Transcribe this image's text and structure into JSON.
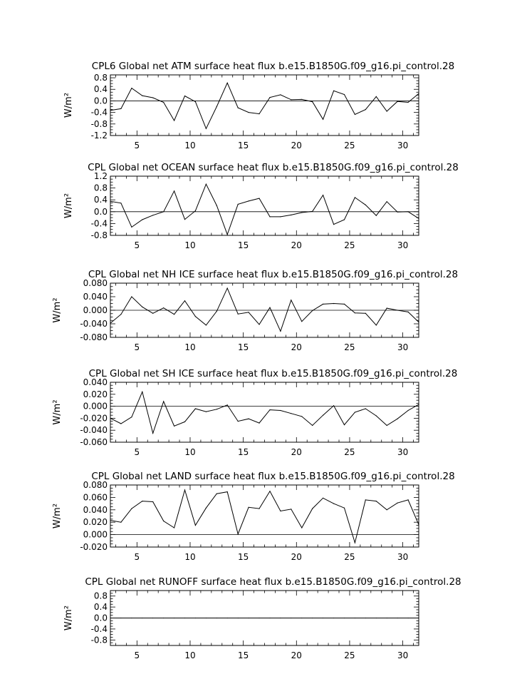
{
  "chart_data": [
    {
      "type": "line",
      "title": "CPL6 Global net ATM surface heat flux b.e15.B1850G.f09_g16.pi_control.28",
      "ylabel": "W/m²",
      "xlim": [
        2.5,
        31.5
      ],
      "ylim": [
        -1.2,
        0.9
      ],
      "x_ticks": [
        "5",
        "10",
        "15",
        "20",
        "25",
        "30"
      ],
      "y_ticks": [
        "0.8",
        "0.4",
        "0.0",
        "-0.4",
        "-0.8",
        "-1.2"
      ],
      "x": [
        2.5,
        3.5,
        4.5,
        5.5,
        6.5,
        7.5,
        8.5,
        9.5,
        10.5,
        11.5,
        12.5,
        13.5,
        14.5,
        15.5,
        16.5,
        17.5,
        18.5,
        19.5,
        20.5,
        21.5,
        22.5,
        23.5,
        24.5,
        25.5,
        26.5,
        27.5,
        28.5,
        29.5,
        30.5,
        31.5
      ],
      "series": [
        {
          "values": [
            -0.33,
            -0.27,
            0.44,
            0.18,
            0.11,
            -0.05,
            -0.68,
            0.17,
            -0.03,
            -0.96,
            -0.2,
            0.62,
            -0.24,
            -0.4,
            -0.45,
            0.12,
            0.21,
            0.04,
            0.05,
            -0.03,
            -0.64,
            0.35,
            0.22,
            -0.47,
            -0.3,
            0.15,
            -0.36,
            -0.02,
            -0.05,
            0.25
          ]
        }
      ]
    },
    {
      "type": "line",
      "title": "CPL Global net OCEAN surface heat flux b.e15.B1850G.f09_g16.pi_control.28",
      "ylabel": "W/m²",
      "xlim": [
        2.5,
        31.5
      ],
      "ylim": [
        -0.8,
        1.2
      ],
      "x_ticks": [
        "5",
        "10",
        "15",
        "20",
        "25",
        "30"
      ],
      "y_ticks": [
        "1.2",
        "0.8",
        "0.4",
        "0.0",
        "-0.4",
        "-0.8"
      ],
      "x": [
        2.5,
        3.5,
        4.5,
        5.5,
        6.5,
        7.5,
        8.5,
        9.5,
        10.5,
        11.5,
        12.5,
        13.5,
        14.5,
        15.5,
        16.5,
        17.5,
        18.5,
        19.5,
        20.5,
        21.5,
        22.5,
        23.5,
        24.5,
        25.5,
        26.5,
        27.5,
        28.5,
        29.5,
        30.5,
        31.5
      ],
      "series": [
        {
          "values": [
            0.35,
            0.29,
            -0.52,
            -0.27,
            -0.12,
            0.0,
            0.7,
            -0.26,
            0.03,
            0.93,
            0.21,
            -0.77,
            0.25,
            0.36,
            0.45,
            -0.17,
            -0.17,
            -0.11,
            -0.03,
            0.01,
            0.56,
            -0.43,
            -0.27,
            0.48,
            0.23,
            -0.13,
            0.34,
            -0.01,
            0.0,
            -0.23
          ]
        }
      ]
    },
    {
      "type": "line",
      "title": "CPL Global net NH ICE surface heat flux b.e15.B1850G.f09_g16.pi_control.28",
      "ylabel": "W/m²",
      "xlim": [
        2.5,
        31.5
      ],
      "ylim": [
        -0.08,
        0.08
      ],
      "x_ticks": [
        "5",
        "10",
        "15",
        "20",
        "25",
        "30"
      ],
      "y_ticks": [
        "0.080",
        "0.040",
        "0.000",
        "-0.040",
        "-0.080"
      ],
      "x": [
        2.5,
        3.5,
        4.5,
        5.5,
        6.5,
        7.5,
        8.5,
        9.5,
        10.5,
        11.5,
        12.5,
        13.5,
        14.5,
        15.5,
        16.5,
        17.5,
        18.5,
        19.5,
        20.5,
        21.5,
        22.5,
        23.5,
        24.5,
        25.5,
        26.5,
        27.5,
        28.5,
        29.5,
        30.5,
        31.5
      ],
      "series": [
        {
          "values": [
            -0.038,
            -0.012,
            0.04,
            0.01,
            -0.009,
            0.007,
            -0.012,
            0.028,
            -0.018,
            -0.044,
            -0.003,
            0.065,
            -0.011,
            -0.006,
            -0.042,
            0.008,
            -0.062,
            0.03,
            -0.033,
            -0.001,
            0.018,
            0.02,
            0.018,
            -0.008,
            -0.009,
            -0.044,
            0.006,
            0.0,
            -0.005,
            -0.035
          ]
        }
      ]
    },
    {
      "type": "line",
      "title": "CPL Global net SH ICE surface heat flux b.e15.B1850G.f09_g16.pi_control.28",
      "ylabel": "W/m²",
      "xlim": [
        2.5,
        31.5
      ],
      "ylim": [
        -0.06,
        0.04
      ],
      "x_ticks": [
        "5",
        "10",
        "15",
        "20",
        "25",
        "30"
      ],
      "y_ticks": [
        "0.040",
        "0.020",
        "0.000",
        "-0.020",
        "-0.040",
        "-0.060"
      ],
      "x": [
        2.5,
        3.5,
        4.5,
        5.5,
        6.5,
        7.5,
        8.5,
        9.5,
        10.5,
        11.5,
        12.5,
        13.5,
        14.5,
        15.5,
        16.5,
        17.5,
        18.5,
        19.5,
        20.5,
        21.5,
        22.5,
        23.5,
        24.5,
        25.5,
        26.5,
        27.5,
        28.5,
        29.5,
        30.5,
        31.5
      ],
      "series": [
        {
          "values": [
            -0.02,
            -0.029,
            -0.018,
            0.024,
            -0.045,
            0.008,
            -0.033,
            -0.026,
            -0.004,
            -0.009,
            -0.005,
            0.002,
            -0.025,
            -0.021,
            -0.028,
            -0.006,
            -0.007,
            -0.012,
            -0.017,
            -0.032,
            -0.015,
            0.001,
            -0.031,
            -0.01,
            -0.004,
            -0.016,
            -0.032,
            -0.021,
            -0.007,
            0.003
          ]
        }
      ]
    },
    {
      "type": "line",
      "title": "CPL Global net LAND surface heat flux b.e15.B1850G.f09_g16.pi_control.28",
      "ylabel": "W/m²",
      "xlim": [
        2.5,
        31.5
      ],
      "ylim": [
        -0.02,
        0.08
      ],
      "x_ticks": [
        "5",
        "10",
        "15",
        "20",
        "25",
        "30"
      ],
      "y_ticks": [
        "0.080",
        "0.060",
        "0.040",
        "0.020",
        "0.000",
        "-0.020"
      ],
      "x": [
        2.5,
        3.5,
        4.5,
        5.5,
        6.5,
        7.5,
        8.5,
        9.5,
        10.5,
        11.5,
        12.5,
        13.5,
        14.5,
        15.5,
        16.5,
        17.5,
        18.5,
        19.5,
        20.5,
        21.5,
        22.5,
        23.5,
        24.5,
        25.5,
        26.5,
        27.5,
        28.5,
        29.5,
        30.5,
        31.5
      ],
      "series": [
        {
          "values": [
            0.023,
            0.02,
            0.042,
            0.054,
            0.053,
            0.022,
            0.011,
            0.072,
            0.015,
            0.043,
            0.066,
            0.069,
            0.001,
            0.044,
            0.042,
            0.07,
            0.038,
            0.041,
            0.011,
            0.042,
            0.059,
            0.05,
            0.043,
            -0.013,
            0.056,
            0.054,
            0.04,
            0.051,
            0.056,
            0.016
          ]
        }
      ]
    },
    {
      "type": "line",
      "title": "CPL Global net RUNOFF surface heat flux b.e15.B1850G.f09_g16.pi_control.28",
      "ylabel": "W/m²",
      "xlim": [
        2.5,
        31.5
      ],
      "ylim": [
        -1.0,
        1.0
      ],
      "x_ticks": [
        "5",
        "10",
        "15",
        "20",
        "25",
        "30"
      ],
      "y_ticks": [
        "0.8",
        "0.4",
        "0.0",
        "-0.4",
        "-0.8"
      ],
      "x": [
        2.5,
        3.5,
        4.5,
        5.5,
        6.5,
        7.5,
        8.5,
        9.5,
        10.5,
        11.5,
        12.5,
        13.5,
        14.5,
        15.5,
        16.5,
        17.5,
        18.5,
        19.5,
        20.5,
        21.5,
        22.5,
        23.5,
        24.5,
        25.5,
        26.5,
        27.5,
        28.5,
        29.5,
        30.5,
        31.5
      ],
      "series": [
        {
          "values": [
            0,
            0,
            0,
            0,
            0,
            0,
            0,
            0,
            0,
            0,
            0,
            0,
            0,
            0,
            0,
            0,
            0,
            0,
            0,
            0,
            0,
            0,
            0,
            0,
            0,
            0,
            0,
            0,
            0,
            0
          ]
        }
      ]
    }
  ]
}
